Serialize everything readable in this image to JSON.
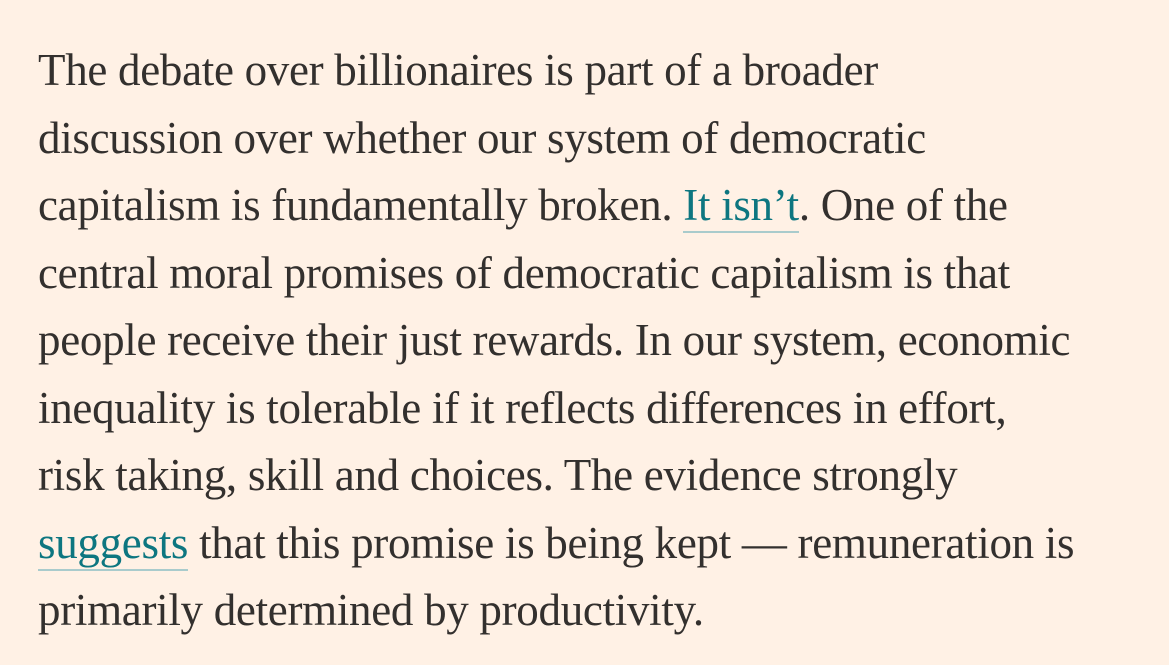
{
  "article": {
    "lines": [
      {
        "text": "The debate over billionaires is part of a broader"
      },
      {
        "text": "discussion over whether our system of democratic"
      },
      {
        "before": "capitalism is fundamentally broken. ",
        "link": "It isn’t",
        "after": ". One of the"
      },
      {
        "text": "central moral promises of democratic capitalism is that"
      },
      {
        "text": "people receive their just rewards. In our system, economic"
      },
      {
        "text": "inequality is tolerable if it reflects differences in effort,"
      },
      {
        "text": "risk taking, skill and choices. The evidence strongly"
      },
      {
        "before": "",
        "link": "suggests",
        "after": " that this promise is being kept — remuneration is"
      },
      {
        "text": "primarily determined by productivity."
      }
    ]
  },
  "colors": {
    "background": "#FFF1E5",
    "text": "#33302E",
    "link": "#0D7680",
    "link_underline": "#A9CBCC"
  }
}
